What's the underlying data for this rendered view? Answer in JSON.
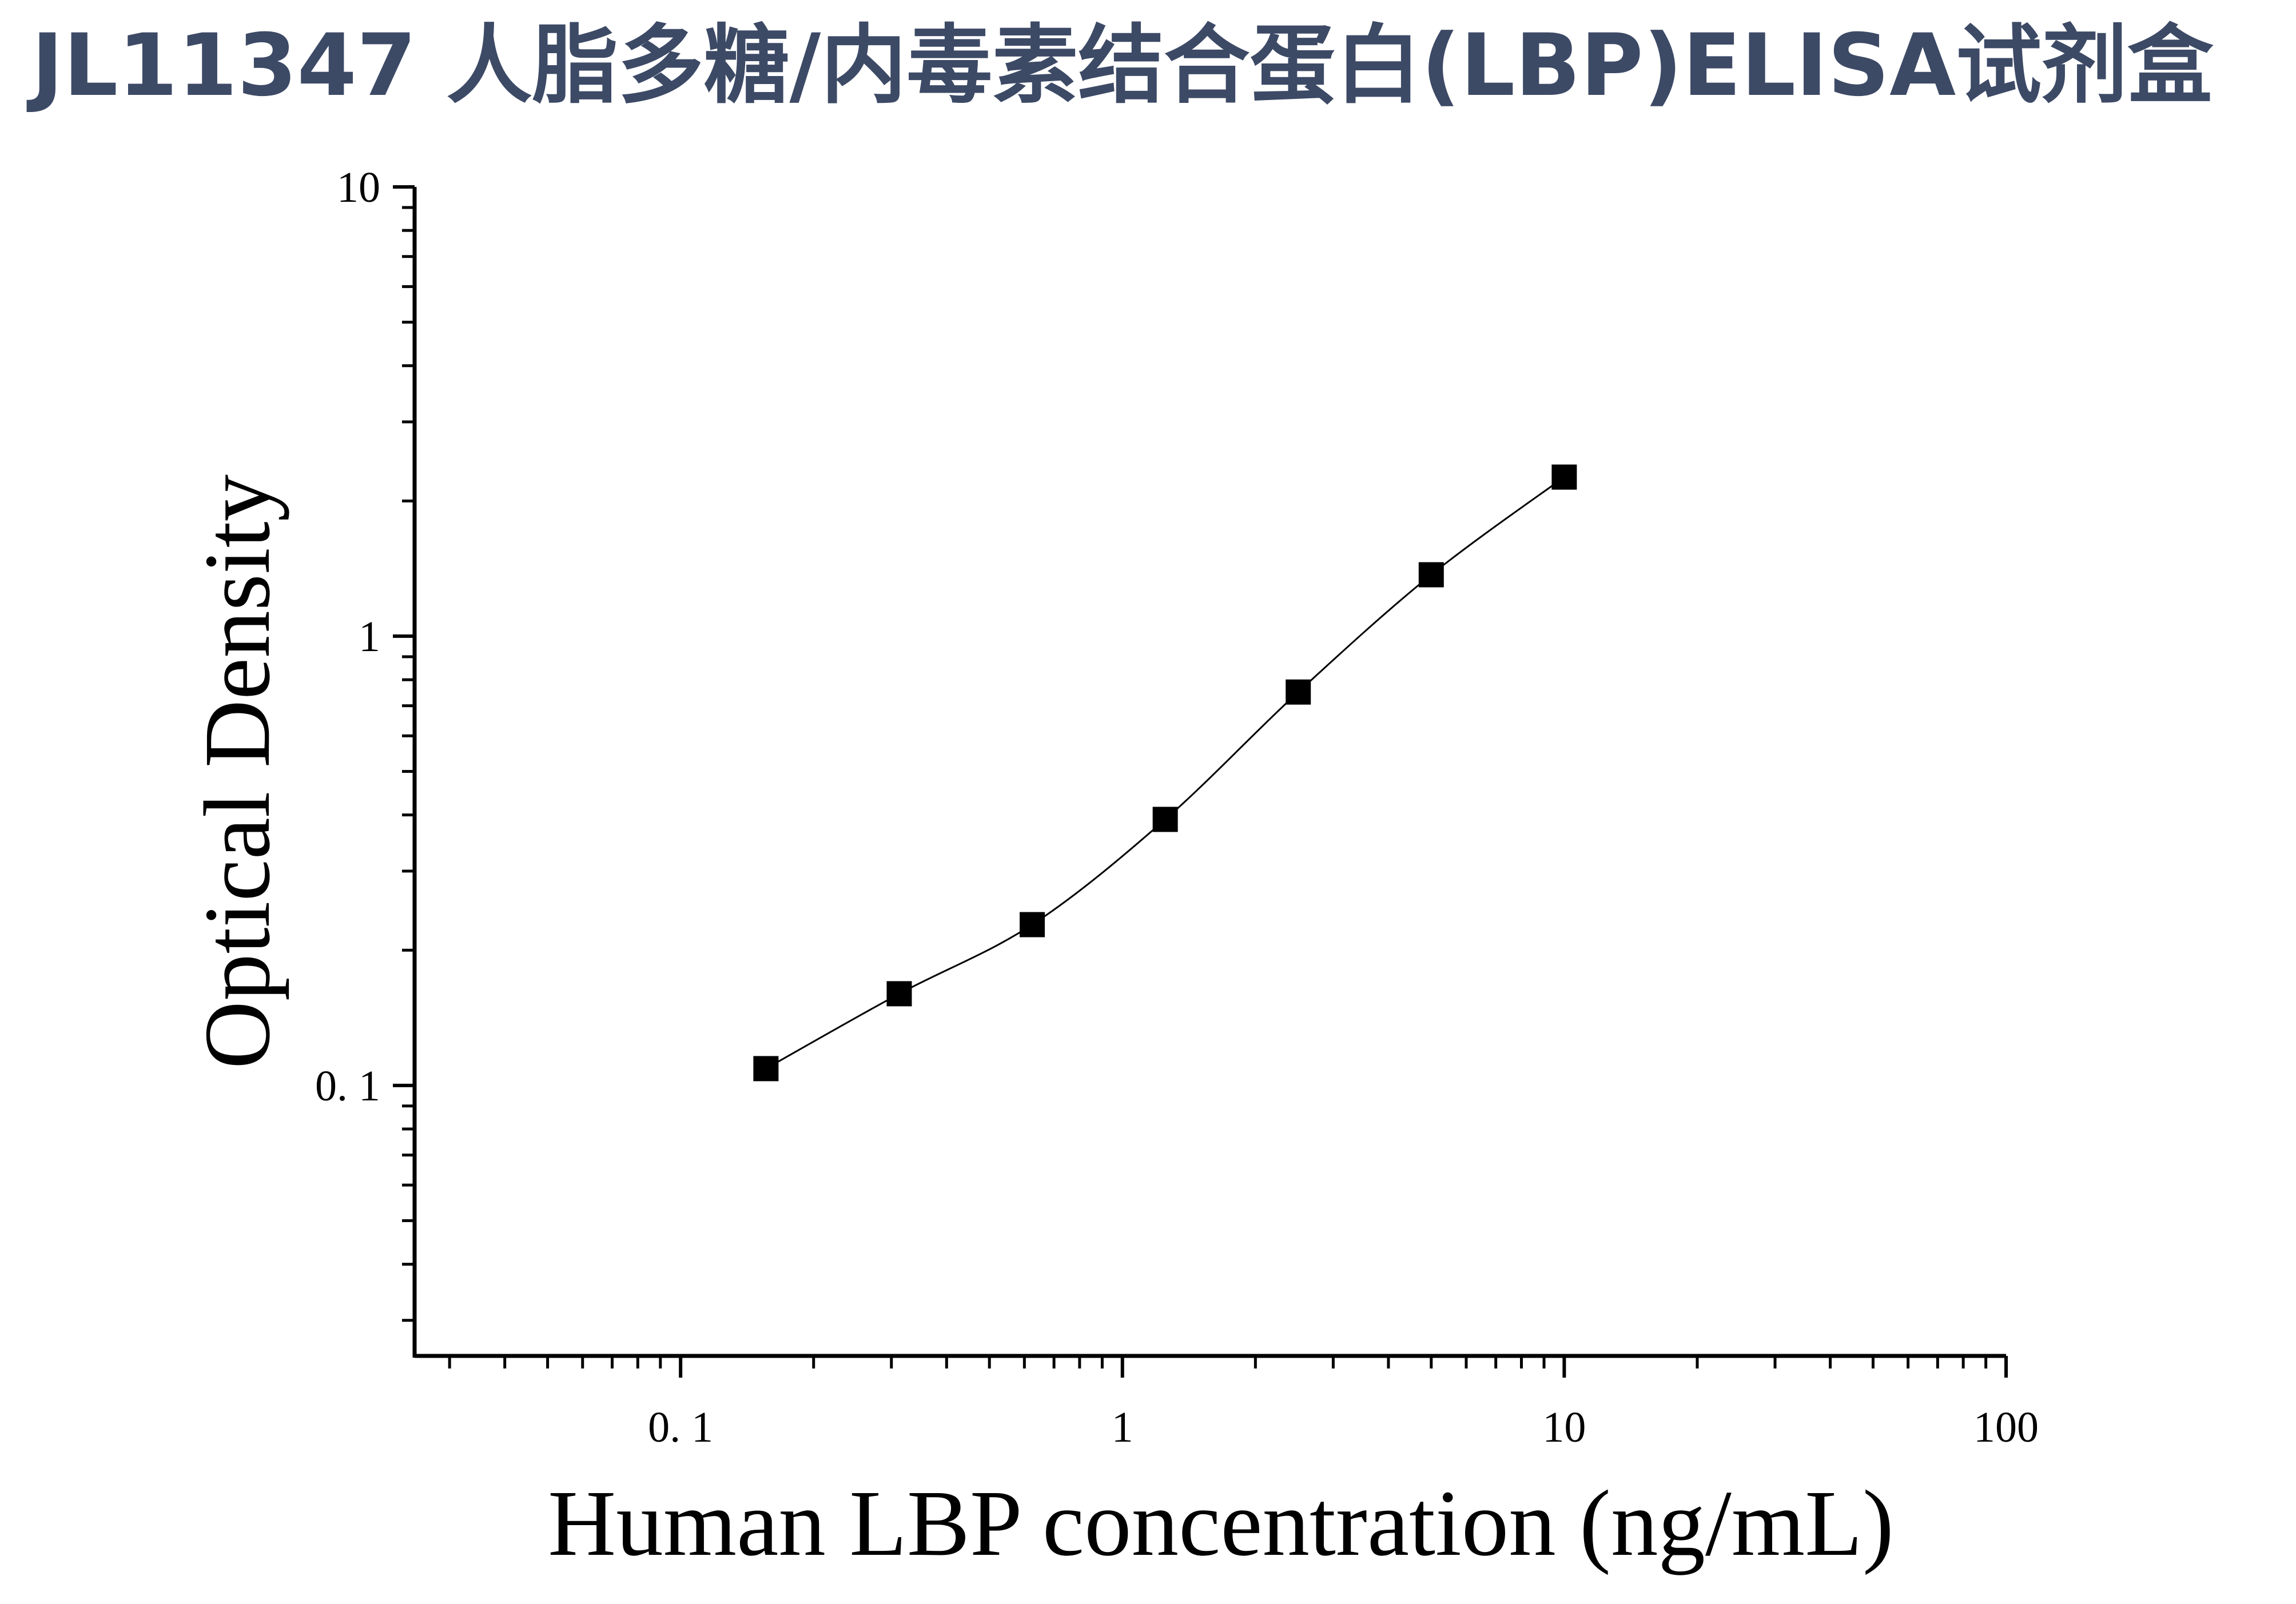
{
  "title": "JL11347 人脂多糖/内毒素结合蛋白(LBP)ELISA试剂盒",
  "colors": {
    "title": "#3d4a66",
    "marks": "#000000",
    "background": "#ffffff"
  },
  "chart_data": {
    "type": "scatter",
    "xlabel": "Human LBP concentration (ng/mL)",
    "ylabel": "Optical Density",
    "x_scale": "log",
    "y_scale": "log",
    "xlim": [
      0.025,
      100
    ],
    "ylim": [
      0.025,
      10
    ],
    "x_tick_labels": [
      "0. 1",
      "1",
      "10",
      "100"
    ],
    "y_tick_labels": [
      "10",
      "1",
      "0. 1"
    ],
    "grid": false,
    "legend": "none",
    "marker": "square",
    "fit_line": "smooth curve through points",
    "series": [
      {
        "x": [
          0.156,
          0.3125,
          0.625,
          1.25,
          2.5,
          5,
          10
        ],
        "y": [
          0.109,
          0.16,
          0.228,
          0.391,
          0.751,
          1.37,
          2.26
        ]
      }
    ]
  }
}
